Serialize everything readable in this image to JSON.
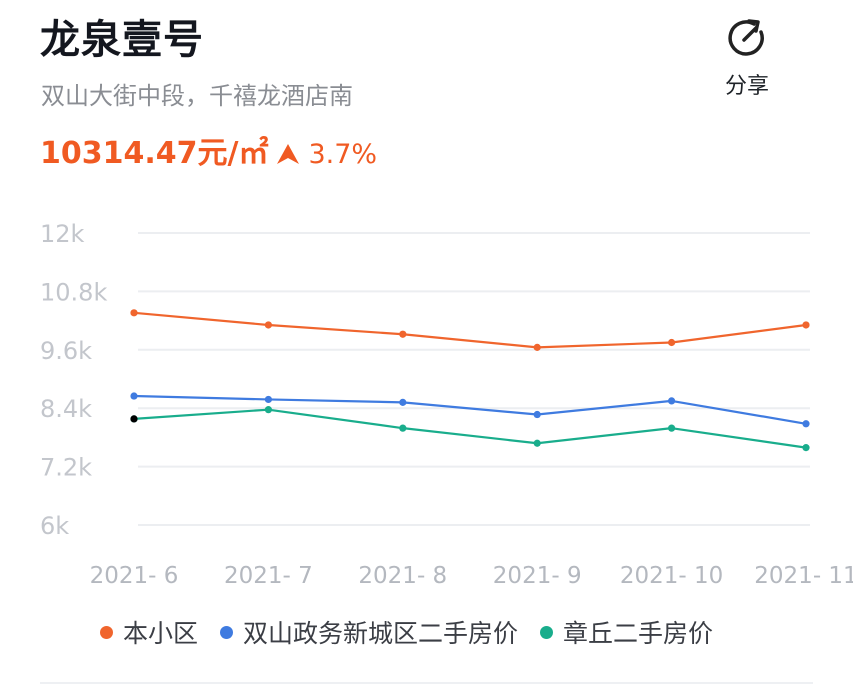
{
  "header": {
    "title": "龙泉壹号",
    "address": "双山大街中段，千禧龙酒店南",
    "price": "10314.47元/㎡",
    "trend": "3.7%",
    "trend_direction": "up",
    "accent_color": "#f05a22"
  },
  "share": {
    "label": "分享",
    "icon": "share-refresh-icon"
  },
  "chart_data": {
    "type": "line",
    "categories": [
      "2021- 6",
      "2021- 7",
      "2021- 8",
      "2021- 9",
      "2021- 10",
      "2021- 11"
    ],
    "ylim": [
      6000,
      12000
    ],
    "y_ticks": [
      12000,
      10800,
      9600,
      8400,
      7200,
      6000
    ],
    "y_tick_labels": [
      "12k",
      "10.8k",
      "9.6k",
      "8.4k",
      "7.2k",
      "6k"
    ],
    "grid": true,
    "legend_position": "bottom",
    "series": [
      {
        "name": "本小区",
        "color": "#f0652d",
        "values": [
          10360,
          10110,
          9920,
          9650,
          9750,
          10110
        ]
      },
      {
        "name": "双山政务新城区二手房价",
        "color": "#3f7be0",
        "values": [
          8650,
          8580,
          8520,
          8270,
          8550,
          8080
        ]
      },
      {
        "name": "章丘二手房价",
        "color": "#19ad8c",
        "values": [
          8180,
          8370,
          7990,
          7680,
          7990,
          7590
        ]
      }
    ]
  }
}
